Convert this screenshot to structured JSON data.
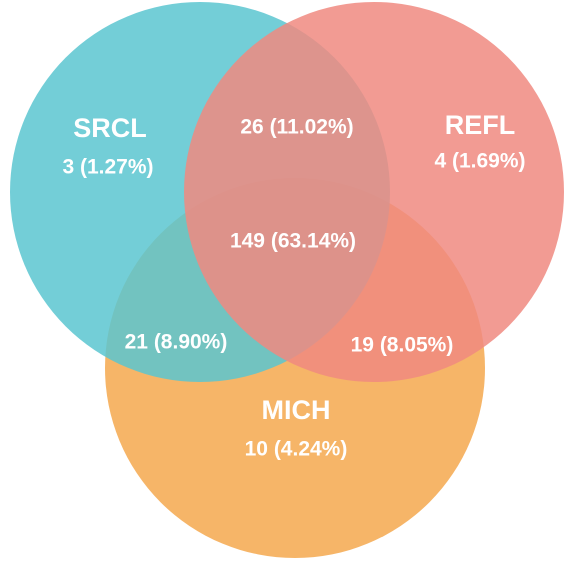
{
  "chart_data": {
    "type": "venn",
    "sets": [
      {
        "name": "SRCL",
        "color": "#5bc5d0"
      },
      {
        "name": "REFL",
        "color": "#f08a80"
      },
      {
        "name": "MICH",
        "color": "#f5a84e"
      }
    ],
    "regions": [
      {
        "sets": [
          "SRCL"
        ],
        "value": 3,
        "value_label": "3 (1.27%)"
      },
      {
        "sets": [
          "REFL"
        ],
        "value": 4,
        "value_label": "4 (1.69%)"
      },
      {
        "sets": [
          "MICH"
        ],
        "value": 10,
        "value_label": "10 (4.24%)"
      },
      {
        "sets": [
          "SRCL",
          "REFL"
        ],
        "value": 26,
        "value_label": "26 (11.02%)"
      },
      {
        "sets": [
          "SRCL",
          "MICH"
        ],
        "value": 21,
        "value_label": "21 (8.90%)"
      },
      {
        "sets": [
          "REFL",
          "MICH"
        ],
        "value": 19,
        "value_label": "19 (8.05%)"
      },
      {
        "sets": [
          "SRCL",
          "REFL",
          "MICH"
        ],
        "value": 149,
        "value_label": "149 (63.14%)"
      }
    ]
  }
}
